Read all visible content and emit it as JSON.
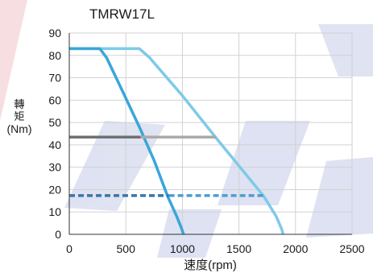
{
  "chart_data": {
    "type": "line",
    "title": "TMRW17L",
    "xlabel": "速度(rpm)",
    "ylabel_lines": [
      "轉",
      "矩",
      "(Nm)"
    ],
    "xlim": [
      0,
      2500
    ],
    "ylim": [
      0,
      90
    ],
    "xticks": [
      0,
      500,
      1000,
      1500,
      2000,
      2500
    ],
    "yticks": [
      0,
      10,
      20,
      30,
      40,
      50,
      60,
      70,
      80,
      90
    ],
    "grid": true,
    "series": [
      {
        "color": "#7ecae8",
        "dashed": false,
        "points": [
          [
            0,
            83
          ],
          [
            620,
            83
          ],
          [
            710,
            79
          ],
          [
            1000,
            62
          ],
          [
            1300,
            43
          ],
          [
            1720,
            17
          ],
          [
            1830,
            8
          ],
          [
            1880,
            2
          ],
          [
            1890,
            0
          ]
        ]
      },
      {
        "color": "#3aa6d8",
        "dashed": false,
        "points": [
          [
            0,
            83
          ],
          [
            270,
            83
          ],
          [
            330,
            79
          ],
          [
            480,
            63
          ],
          [
            620,
            48
          ],
          [
            750,
            33
          ],
          [
            870,
            17
          ],
          [
            950,
            8
          ],
          [
            990,
            3
          ],
          [
            1010,
            0
          ]
        ]
      },
      {
        "color": "#707070",
        "dashed": false,
        "points": [
          [
            0,
            43.5
          ],
          [
            630,
            43.5
          ]
        ]
      },
      {
        "color": "#aaaaaa",
        "dashed": false,
        "points": [
          [
            630,
            43.5
          ],
          [
            1300,
            43.5
          ]
        ]
      },
      {
        "color": "#3c75a6",
        "dashed": true,
        "points": [
          [
            0,
            17.3
          ],
          [
            880,
            17.3
          ]
        ]
      },
      {
        "color": "#4f9cd0",
        "dashed": true,
        "points": [
          [
            880,
            17.3
          ],
          [
            1720,
            17.3
          ]
        ]
      }
    ]
  }
}
